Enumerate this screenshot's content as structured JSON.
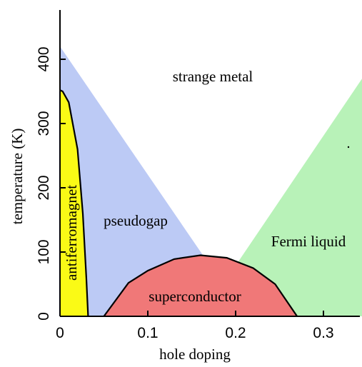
{
  "chart_data": {
    "type": "area",
    "title": "",
    "xlabel": "hole doping",
    "ylabel": "temperature (K)",
    "xlim": [
      0,
      0.35
    ],
    "ylim": [
      0,
      420
    ],
    "xticks": [
      0,
      0.1,
      0.2,
      0.3
    ],
    "xtick_labels": [
      "0",
      "0.1",
      "0.2",
      "0.3"
    ],
    "yticks": [
      0,
      100,
      200,
      300,
      400
    ],
    "ytick_labels": [
      "0",
      "100",
      "200",
      "300",
      "400"
    ],
    "grid": false,
    "legend": "none",
    "regions": [
      {
        "name": "strange metal",
        "color": "#ffffff",
        "boundary": [
          [
            0.0,
            400
          ],
          [
            0.17,
            330
          ]
        ]
      },
      {
        "name": "pseudogap",
        "color": "#bccaf5",
        "boundary": [
          [
            0.0,
            420
          ],
          [
            0.0,
            352
          ],
          [
            0.003,
            350
          ],
          [
            0.01,
            333
          ],
          [
            0.02,
            260
          ],
          [
            0.026,
            160
          ],
          [
            0.03,
            60
          ],
          [
            0.032,
            0
          ],
          [
            0.05,
            0
          ],
          [
            0.078,
            52
          ],
          [
            0.1,
            71
          ],
          [
            0.13,
            89
          ],
          [
            0.16,
            95
          ],
          [
            0.163,
            94.5
          ]
        ]
      },
      {
        "name": "antiferromagnet",
        "color": "#fafa16",
        "boundary": [
          [
            0.0,
            0
          ],
          [
            0.0,
            352
          ],
          [
            0.003,
            350
          ],
          [
            0.01,
            333
          ],
          [
            0.02,
            260
          ],
          [
            0.026,
            160
          ],
          [
            0.03,
            60
          ],
          [
            0.032,
            0
          ]
        ]
      },
      {
        "name": "superconductor",
        "color": "#f07878",
        "boundary": [
          [
            0.05,
            0
          ],
          [
            0.078,
            52
          ],
          [
            0.1,
            71
          ],
          [
            0.13,
            89
          ],
          [
            0.16,
            95
          ],
          [
            0.19,
            91
          ],
          [
            0.22,
            75
          ],
          [
            0.245,
            50
          ],
          [
            0.27,
            0
          ]
        ]
      },
      {
        "name": "Fermi liquid",
        "color": "#b8f2b8",
        "boundary": [
          [
            0.203,
            85
          ],
          [
            0.35,
            382
          ],
          [
            0.35,
            0
          ],
          [
            0.263,
            0
          ],
          [
            0.245,
            50
          ],
          [
            0.22,
            75
          ]
        ]
      }
    ],
    "labels": {
      "strange_metal": "strange metal",
      "pseudogap": "pseudogap",
      "antiferromagnet": "antiferromagnet",
      "superconductor": "superconductor",
      "fermi_liquid": "Fermi liquid"
    },
    "colors": {
      "pseudogap": "#bccaf5",
      "antiferromagnet": "#fafa16",
      "superconductor": "#f07878",
      "fermi_liquid": "#b8f2b8",
      "boundary": "#000000"
    }
  }
}
